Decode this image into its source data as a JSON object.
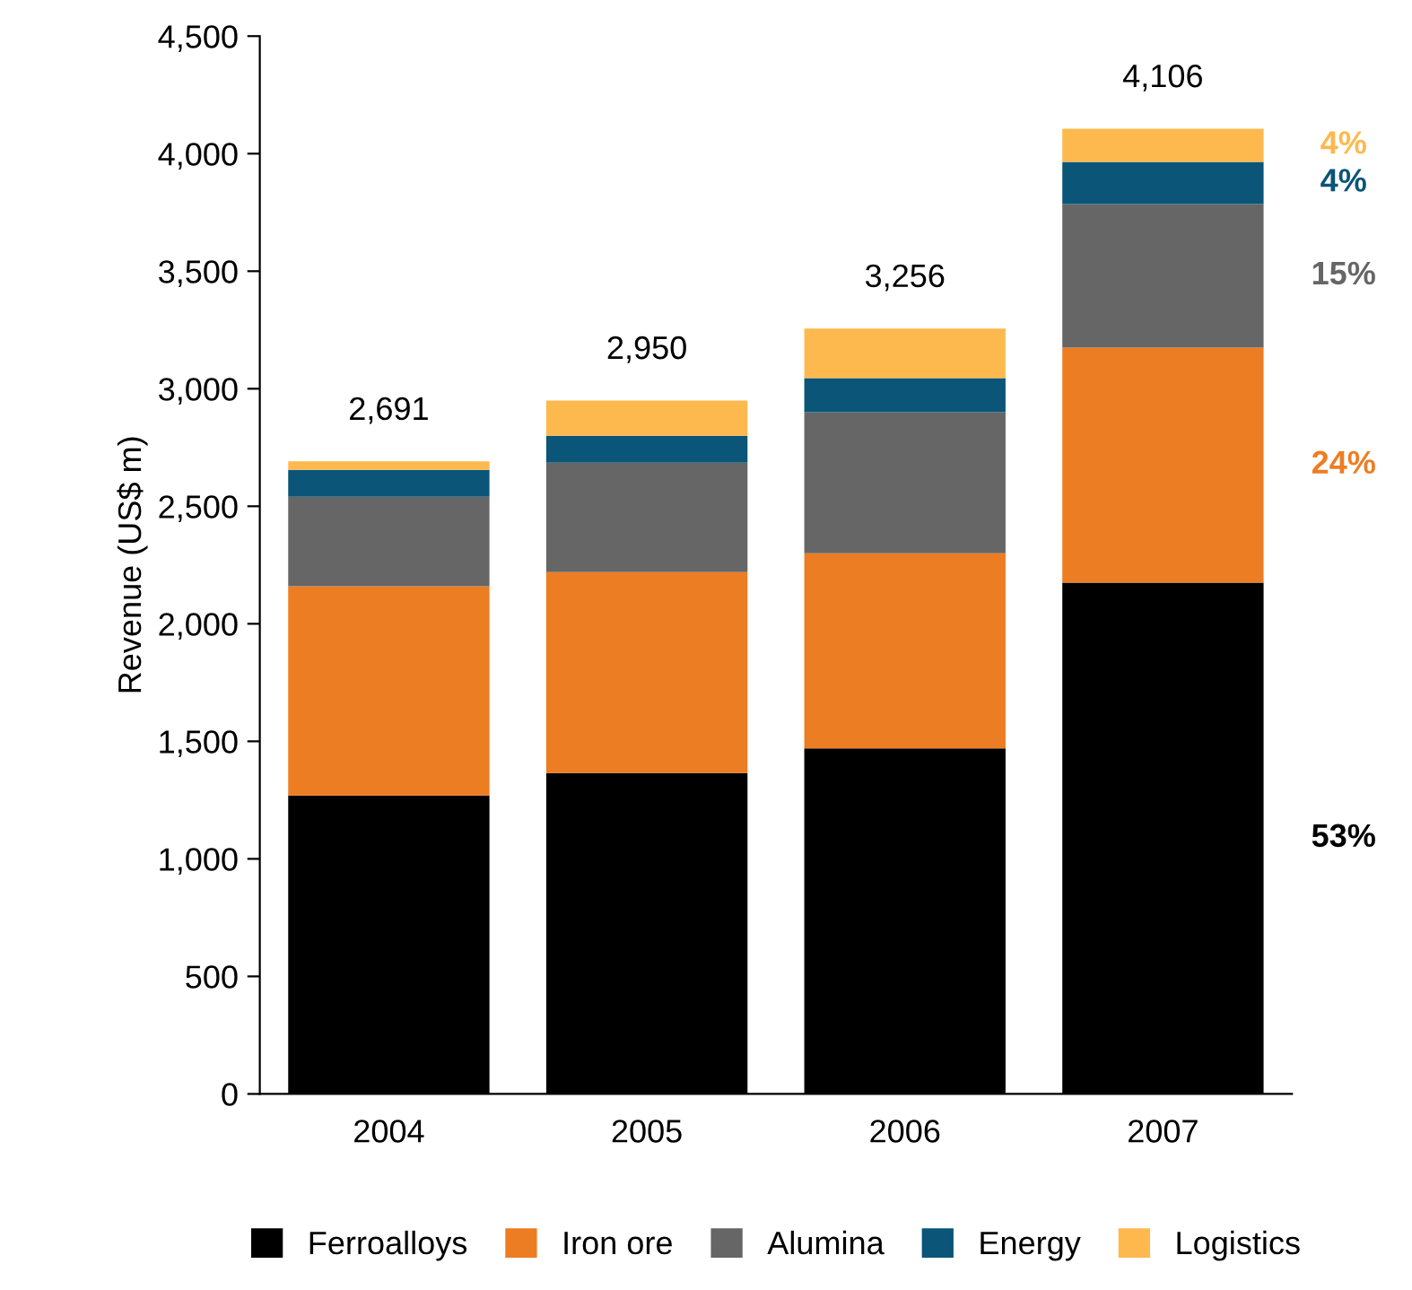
{
  "chart_data": {
    "type": "bar",
    "stacked": true,
    "ylabel": "Revenue (US$ m)",
    "categories": [
      "2004",
      "2005",
      "2006",
      "2007"
    ],
    "series": [
      {
        "name": "Ferroalloys",
        "color": "#000000",
        "values": [
          1270,
          1365,
          1470,
          2175
        ]
      },
      {
        "name": "Iron ore",
        "color": "#ed7d22",
        "values": [
          890,
          855,
          830,
          1000
        ]
      },
      {
        "name": "Alumina",
        "color": "#666666",
        "values": [
          380,
          465,
          600,
          610
        ]
      },
      {
        "name": "Energy",
        "color": "#0a5578",
        "values": [
          115,
          115,
          145,
          180
        ]
      },
      {
        "name": "Logistics",
        "color": "#fdb94e",
        "values": [
          36,
          150,
          211,
          141
        ]
      }
    ],
    "totals": [
      "2,691",
      "2,950",
      "3,256",
      "4,106"
    ],
    "annotations": [
      "4%",
      "4%",
      "15%",
      "24%",
      "53%"
    ],
    "ylim": [
      0,
      4500
    ],
    "yticks": [
      0,
      500,
      {
        "value": 1000,
        "label": "1,000"
      },
      {
        "value": 1500,
        "label": "1,500"
      },
      {
        "value": 2000,
        "label": "2,000"
      },
      {
        "value": 2500,
        "label": "2,500"
      },
      {
        "value": 3000,
        "label": "3,000"
      },
      {
        "value": 3500,
        "label": "3,500"
      },
      {
        "value": 4000,
        "label": "4,000"
      },
      {
        "value": 4500,
        "label": "4,500"
      }
    ],
    "grid": false,
    "legend": "bottom"
  }
}
